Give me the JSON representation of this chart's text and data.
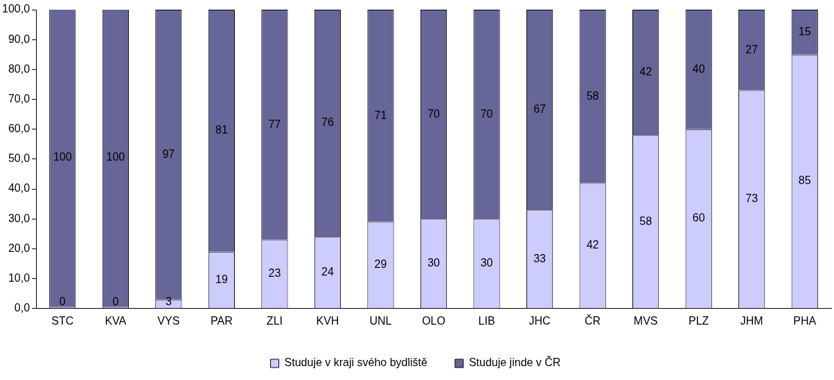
{
  "chart_data": {
    "type": "bar",
    "stacked": true,
    "legend": "bottom",
    "grid": false,
    "categories": [
      "STC",
      "KVA",
      "VYS",
      "PAR",
      "ZLI",
      "KVH",
      "UNL",
      "OLO",
      "LIB",
      "JHC",
      "ČR",
      "MVS",
      "PLZ",
      "JHM",
      "PHA"
    ],
    "series": [
      {
        "name": "Studuje v kraji svého bydliště",
        "color": "#ccccff",
        "values": [
          0,
          0,
          3,
          19,
          23,
          24,
          29,
          30,
          30,
          33,
          42,
          58,
          60,
          73,
          85
        ],
        "value_labels": [
          "0",
          "0",
          "3",
          "19",
          "23",
          "24",
          "29",
          "30",
          "30",
          "33",
          "42",
          "58",
          "60",
          "73",
          "85"
        ]
      },
      {
        "name": "Studuje jinde v ČR",
        "color": "#666699",
        "values": [
          100,
          100,
          97,
          81,
          77,
          76,
          71,
          70,
          70,
          67,
          58,
          42,
          40,
          27,
          15
        ],
        "value_labels": [
          "100",
          "100",
          "97",
          "81",
          "77",
          "76",
          "71",
          "70",
          "70",
          "67",
          "58",
          "42",
          "40",
          "27",
          "15"
        ]
      }
    ],
    "ylim": [
      0,
      100
    ],
    "yticks": [
      {
        "value": 0,
        "label": "0,0"
      },
      {
        "value": 10,
        "label": "10,0"
      },
      {
        "value": 20,
        "label": "20,0"
      },
      {
        "value": 30,
        "label": "30,0"
      },
      {
        "value": 40,
        "label": "40,0"
      },
      {
        "value": 50,
        "label": "50,0"
      },
      {
        "value": 60,
        "label": "60,0"
      },
      {
        "value": 70,
        "label": "70,0"
      },
      {
        "value": 80,
        "label": "80,0"
      },
      {
        "value": 90,
        "label": "90,0"
      },
      {
        "value": 100,
        "label": "100,0"
      }
    ]
  }
}
